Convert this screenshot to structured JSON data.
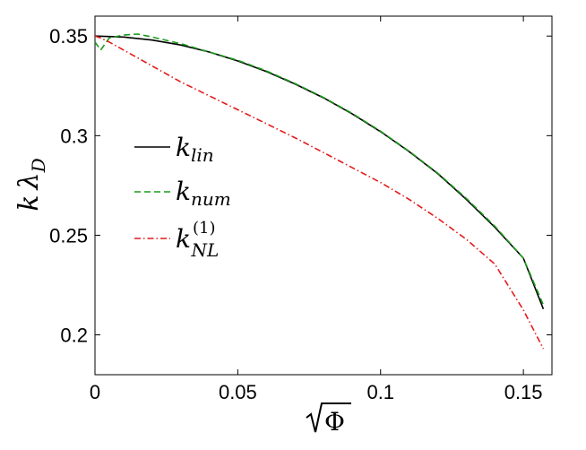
{
  "chart_data": {
    "type": "line",
    "xlabel": "√Φ",
    "ylabel": "k λ_D",
    "xlim": [
      0,
      0.16
    ],
    "ylim": [
      0.18,
      0.36
    ],
    "x_ticks": [
      0,
      0.05,
      0.1,
      0.15
    ],
    "x_tick_labels": [
      "0",
      "0.05",
      "0.1",
      "0.15"
    ],
    "y_ticks": [
      0.2,
      0.25,
      0.3,
      0.35
    ],
    "y_tick_labels": [
      "0.2",
      "0.25",
      "0.3",
      "0.35"
    ],
    "grid": false,
    "legend_position": "center-left",
    "series": [
      {
        "name": "k_lin",
        "color": "#000000",
        "style": "solid",
        "x": [
          0,
          0.01,
          0.02,
          0.03,
          0.04,
          0.05,
          0.06,
          0.07,
          0.08,
          0.09,
          0.1,
          0.11,
          0.12,
          0.13,
          0.14,
          0.15,
          0.157
        ],
        "y": [
          0.35,
          0.3495,
          0.348,
          0.3455,
          0.342,
          0.3375,
          0.3322,
          0.326,
          0.319,
          0.311,
          0.302,
          0.292,
          0.281,
          0.268,
          0.254,
          0.2385,
          0.213
        ]
      },
      {
        "name": "k_num",
        "color": "#1a9a1a",
        "style": "dashed",
        "x": [
          0,
          0.002,
          0.005,
          0.01,
          0.015,
          0.02,
          0.03,
          0.04,
          0.05,
          0.06,
          0.07,
          0.08,
          0.09,
          0.1,
          0.11,
          0.12,
          0.13,
          0.14,
          0.15,
          0.157
        ],
        "y": [
          0.347,
          0.343,
          0.349,
          0.3505,
          0.351,
          0.3495,
          0.3462,
          0.342,
          0.3378,
          0.3325,
          0.3262,
          0.3192,
          0.3112,
          0.3022,
          0.2922,
          0.2812,
          0.2685,
          0.2545,
          0.2385,
          0.215
        ]
      },
      {
        "name": "k_NL^(1)",
        "color": "#e31a1a",
        "style": "dashdot",
        "x": [
          0,
          0.002,
          0.005,
          0.01,
          0.02,
          0.03,
          0.04,
          0.05,
          0.06,
          0.07,
          0.08,
          0.09,
          0.1,
          0.11,
          0.12,
          0.13,
          0.14,
          0.15,
          0.157
        ],
        "y": [
          0.35,
          0.349,
          0.347,
          0.343,
          0.335,
          0.327,
          0.32,
          0.313,
          0.306,
          0.299,
          0.2915,
          0.284,
          0.2765,
          0.268,
          0.2585,
          0.248,
          0.2355,
          0.2125,
          0.193
        ]
      }
    ]
  }
}
